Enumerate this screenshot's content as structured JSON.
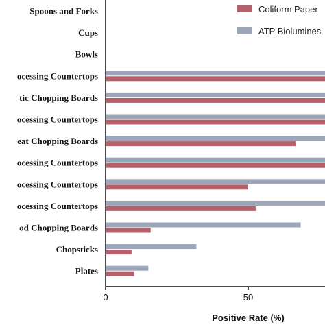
{
  "chart_data": {
    "type": "bar",
    "orientation": "horizontal",
    "categories": [
      "Spoons and Forks",
      "Cups",
      "Bowls",
      "ocessing Countertops",
      "tic Chopping Boards",
      "ocessing Countertops",
      "eat Chopping Boards",
      "ocessing Countertops",
      "ocessing Countertops",
      "ocessing Countertops",
      "od Chopping Boards",
      "Chopsticks",
      "Plates"
    ],
    "series": [
      {
        "name": "Coliform Paper",
        "color": "#b5606b",
        "values": [
          0,
          0,
          0,
          100,
          100,
          100,
          66.7,
          100,
          50,
          52.6,
          15.8,
          9.1,
          10.0
        ]
      },
      {
        "name": "ATP Biolumines",
        "color": "#9da6b8",
        "values": [
          0,
          0,
          0,
          100,
          100,
          100,
          100,
          100,
          100,
          100,
          68.4,
          31.8,
          15.0
        ]
      }
    ],
    "xlabel": "Positive Rate (%)",
    "ylabel": "",
    "xlim": [
      0,
      100
    ],
    "xticks": [
      0,
      50
    ],
    "grid": false,
    "legend": "top-right"
  }
}
